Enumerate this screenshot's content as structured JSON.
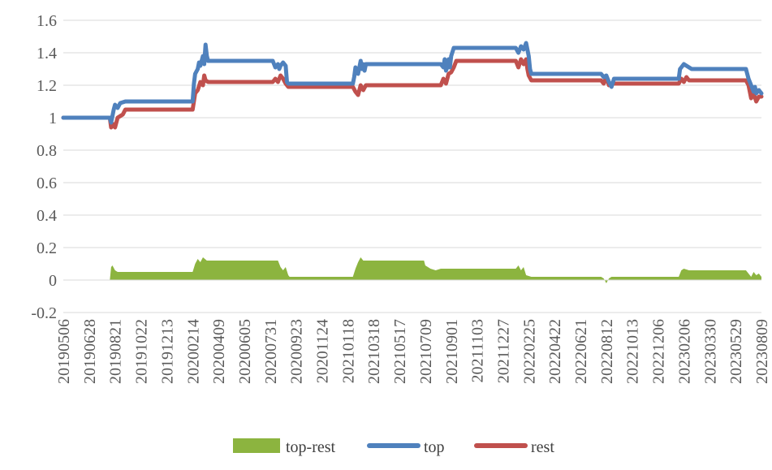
{
  "chart_data": {
    "type": "line",
    "title": "",
    "xlabel": "",
    "ylabel": "",
    "ylim": [
      -0.2,
      1.6
    ],
    "yticks": [
      -0.2,
      0,
      0.2,
      0.4,
      0.6,
      0.8,
      1,
      1.2,
      1.4,
      1.6
    ],
    "ytick_labels": [
      "-0.2",
      "0",
      "0.2",
      "0.4",
      "0.6",
      "0.8",
      "1",
      "1.2",
      "1.4",
      "1.6"
    ],
    "x_tick_labels": [
      "20190506",
      "20190628",
      "20190821",
      "20191022",
      "20191213",
      "20200214",
      "20200409",
      "20200605",
      "20200731",
      "20200923",
      "20201124",
      "20210118",
      "20210318",
      "20210517",
      "20210709",
      "20210901",
      "20211103",
      "20211227",
      "20220225",
      "20220422",
      "20220621",
      "20220812",
      "20221013",
      "20221206",
      "20230206",
      "20230330",
      "20230529",
      "20230809"
    ],
    "grid": "horizontal",
    "legend_position": "bottom",
    "series": [
      {
        "name": "top-rest",
        "kind": "area",
        "color": "#8CB43F",
        "x": [
          0.0,
          1.8,
          1.85,
          1.9,
          2.0,
          2.1,
          2.3,
          5.0,
          5.1,
          5.2,
          5.3,
          5.4,
          5.55,
          5.6,
          8.3,
          8.4,
          8.5,
          8.6,
          8.7,
          8.75,
          8.8,
          11.2,
          11.3,
          11.4,
          11.5,
          11.6,
          11.7,
          13.95,
          14.0,
          14.2,
          14.4,
          14.6,
          14.8,
          17.5,
          17.6,
          17.7,
          17.8,
          17.9,
          18.1,
          20.8,
          20.9,
          21.0,
          21.1,
          21.2,
          23.8,
          23.9,
          24.0,
          24.2,
          26.4,
          26.6,
          26.7,
          26.8,
          26.9,
          27.0
        ],
        "values": [
          0.0,
          0.0,
          0.08,
          0.09,
          0.06,
          0.05,
          0.05,
          0.05,
          0.1,
          0.13,
          0.11,
          0.14,
          0.12,
          0.12,
          0.12,
          0.08,
          0.06,
          0.08,
          0.03,
          0.02,
          0.02,
          0.02,
          0.07,
          0.11,
          0.14,
          0.12,
          0.12,
          0.12,
          0.09,
          0.07,
          0.06,
          0.07,
          0.07,
          0.07,
          0.09,
          0.06,
          0.08,
          0.03,
          0.02,
          0.02,
          0.01,
          -0.02,
          0.01,
          0.02,
          0.02,
          0.06,
          0.07,
          0.06,
          0.06,
          0.02,
          0.05,
          0.03,
          0.04,
          0.02
        ]
      },
      {
        "name": "top",
        "kind": "line",
        "color": "#4F81BD",
        "x": [
          0.0,
          1.8,
          1.85,
          1.95,
          2.0,
          2.1,
          2.2,
          2.4,
          2.6,
          5.0,
          5.05,
          5.1,
          5.2,
          5.25,
          5.3,
          5.4,
          5.45,
          5.5,
          5.55,
          5.6,
          8.1,
          8.2,
          8.3,
          8.35,
          8.4,
          8.5,
          8.6,
          8.65,
          8.7,
          11.2,
          11.25,
          11.3,
          11.4,
          11.5,
          11.55,
          11.6,
          11.65,
          11.7,
          14.6,
          14.7,
          14.75,
          14.8,
          14.85,
          14.9,
          14.95,
          15.0,
          15.1,
          15.2,
          15.3,
          17.5,
          17.6,
          17.7,
          17.8,
          17.9,
          17.95,
          18.0,
          18.05,
          18.1,
          20.8,
          20.9,
          21.0,
          21.1,
          21.2,
          21.3,
          23.8,
          23.85,
          23.9,
          24.0,
          24.1,
          24.2,
          24.3,
          24.4,
          26.4,
          26.5,
          26.6,
          26.7,
          26.75,
          26.8,
          26.9,
          27.0
        ],
        "values": [
          1.0,
          1.0,
          0.97,
          1.05,
          1.08,
          1.06,
          1.09,
          1.1,
          1.1,
          1.1,
          1.21,
          1.27,
          1.3,
          1.34,
          1.32,
          1.38,
          1.33,
          1.45,
          1.38,
          1.35,
          1.35,
          1.31,
          1.33,
          1.3,
          1.32,
          1.34,
          1.32,
          1.22,
          1.21,
          1.21,
          1.25,
          1.31,
          1.27,
          1.35,
          1.3,
          1.33,
          1.29,
          1.33,
          1.33,
          1.31,
          1.36,
          1.29,
          1.31,
          1.36,
          1.31,
          1.38,
          1.43,
          1.43,
          1.43,
          1.43,
          1.4,
          1.44,
          1.42,
          1.46,
          1.42,
          1.38,
          1.3,
          1.27,
          1.27,
          1.25,
          1.26,
          1.22,
          1.19,
          1.24,
          1.24,
          1.3,
          1.31,
          1.33,
          1.32,
          1.31,
          1.3,
          1.3,
          1.3,
          1.24,
          1.2,
          1.16,
          1.19,
          1.15,
          1.17,
          1.15
        ]
      },
      {
        "name": "rest",
        "kind": "line",
        "color": "#C0504D",
        "x": [
          0.0,
          1.8,
          1.85,
          1.95,
          2.0,
          2.1,
          2.3,
          2.4,
          5.0,
          5.1,
          5.2,
          5.3,
          5.4,
          5.45,
          5.5,
          5.6,
          8.1,
          8.2,
          8.3,
          8.4,
          8.5,
          8.6,
          8.7,
          11.2,
          11.3,
          11.4,
          11.5,
          11.6,
          11.7,
          14.6,
          14.7,
          14.8,
          14.9,
          15.0,
          15.1,
          15.2,
          17.5,
          17.6,
          17.7,
          17.8,
          17.9,
          17.95,
          18.0,
          18.1,
          20.8,
          20.9,
          21.0,
          21.1,
          21.2,
          23.8,
          23.9,
          24.0,
          24.1,
          24.2,
          26.4,
          26.5,
          26.6,
          26.7,
          26.8,
          26.9,
          27.0
        ],
        "values": [
          1.0,
          1.0,
          0.94,
          0.96,
          0.94,
          1.0,
          1.02,
          1.05,
          1.05,
          1.15,
          1.17,
          1.22,
          1.2,
          1.26,
          1.23,
          1.22,
          1.22,
          1.24,
          1.22,
          1.26,
          1.24,
          1.21,
          1.19,
          1.19,
          1.16,
          1.14,
          1.2,
          1.17,
          1.2,
          1.2,
          1.24,
          1.21,
          1.27,
          1.28,
          1.31,
          1.35,
          1.35,
          1.31,
          1.36,
          1.33,
          1.36,
          1.3,
          1.26,
          1.23,
          1.23,
          1.21,
          1.25,
          1.2,
          1.21,
          1.21,
          1.24,
          1.22,
          1.25,
          1.23,
          1.23,
          1.2,
          1.12,
          1.15,
          1.1,
          1.13,
          1.13
        ]
      }
    ],
    "colors": {
      "axis": "#D9D9D9",
      "gridline": "#D9D9D9",
      "text": "#595959"
    }
  }
}
